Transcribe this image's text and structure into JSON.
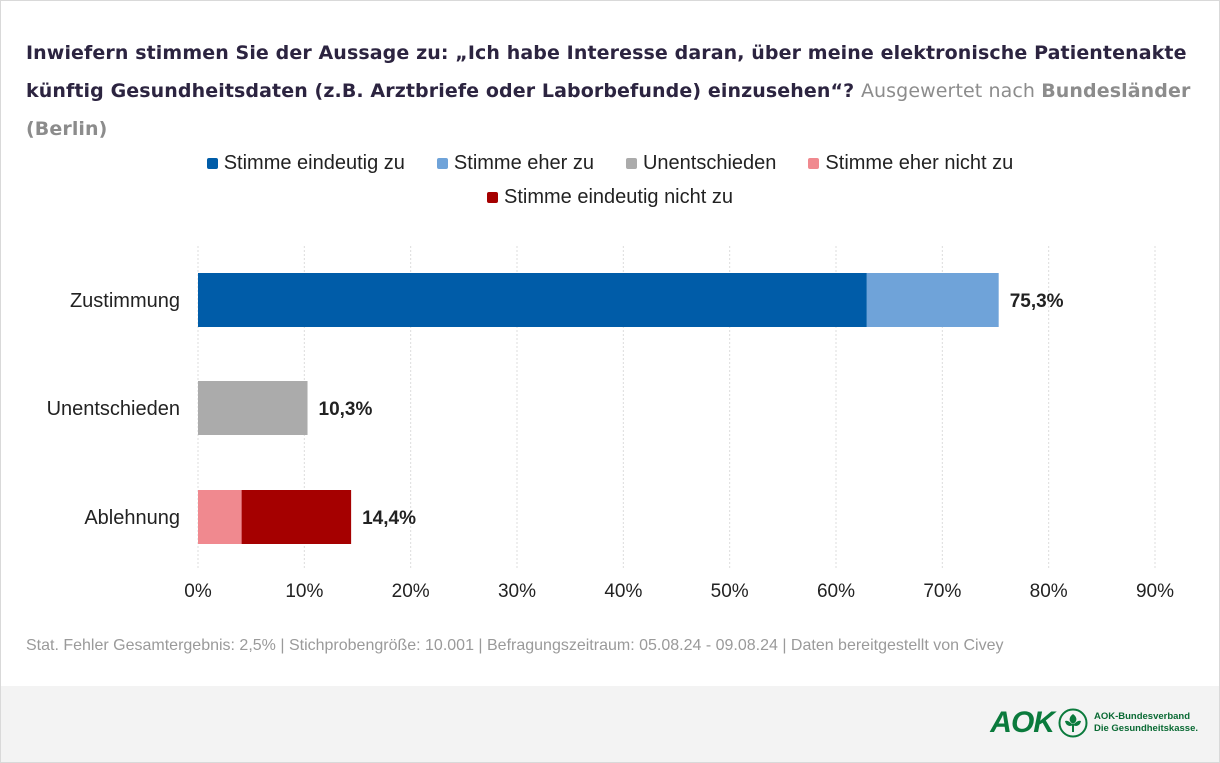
{
  "title": {
    "question": "Inwiefern stimmen Sie der Aussage zu: „Ich habe Interesse daran, über meine elektronische Patientenakte künftig Gesundheitsdaten (z.B. Arztbriefe oder Laborbefunde) einzusehen“?",
    "sub_prefix": "Ausgewertet nach",
    "sub_bold": "Bundesländer (Berlin)"
  },
  "colors": {
    "eindeutig_zu": "#005ca8",
    "eher_zu": "#6fa3d9",
    "unentschieden": "#ababab",
    "eher_nicht": "#f0898f",
    "eindeutig_nicht": "#a50000"
  },
  "footnote": "Stat. Fehler Gesamtergebnis: 2,5% | Stichprobengröße: 10.001 | Befragungszeitraum: 05.08.24 - 09.08.24 | Daten bereitgestellt von Civey",
  "logo": {
    "word": "AOK",
    "tag_line1": "AOK-Bundesverband",
    "tag_line2": "Die Gesundheitskasse."
  },
  "chart_data": {
    "type": "bar",
    "orientation": "horizontal",
    "stacked": true,
    "categories": [
      "Zustimmung",
      "Unentschieden",
      "Ablehnung"
    ],
    "series": [
      {
        "name": "Stimme eindeutig zu",
        "color": "#005ca8",
        "values": [
          62.9,
          0,
          0
        ]
      },
      {
        "name": "Stimme eher zu",
        "color": "#6fa3d9",
        "values": [
          12.4,
          0,
          0
        ]
      },
      {
        "name": "Unentschieden",
        "color": "#ababab",
        "values": [
          0,
          10.3,
          0
        ]
      },
      {
        "name": "Stimme eher nicht zu",
        "color": "#f0898f",
        "values": [
          0,
          0,
          4.1
        ]
      },
      {
        "name": "Stimme eindeutig nicht zu",
        "color": "#a50000",
        "values": [
          0,
          0,
          10.3
        ]
      }
    ],
    "totals_labels": [
      "75,3%",
      "10,3%",
      "14,4%"
    ],
    "xlim": [
      0,
      90
    ],
    "xticks": [
      0,
      10,
      20,
      30,
      40,
      50,
      60,
      70,
      80,
      90
    ],
    "xtick_labels": [
      "0%",
      "10%",
      "20%",
      "30%",
      "40%",
      "50%",
      "60%",
      "70%",
      "80%",
      "90%"
    ],
    "grid": "vertical",
    "legend_position": "top-center",
    "legend_rows": [
      [
        "Stimme eindeutig zu",
        "Stimme eher zu",
        "Unentschieden",
        "Stimme eher nicht zu"
      ],
      [
        "Stimme eindeutig nicht zu"
      ]
    ]
  }
}
